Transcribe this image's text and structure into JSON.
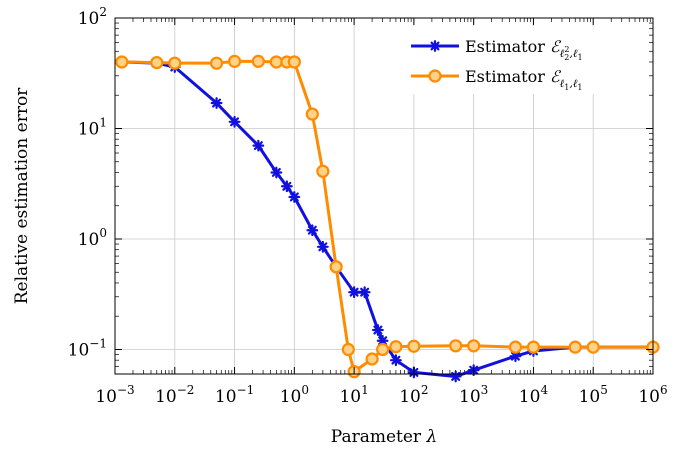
{
  "chart_data": {
    "type": "line",
    "x_scale": "log",
    "y_scale": "log",
    "xlabel_text": "Parameter",
    "xlabel_symbol": "λ",
    "ylabel": "Relative estimation error",
    "xlim": [
      0.001,
      1000000
    ],
    "ylim": [
      0.06,
      100
    ],
    "grid": true,
    "legend_position": "top-right",
    "x_ticks": [
      {
        "base": "10",
        "exp": "−3"
      },
      {
        "base": "10",
        "exp": "−2"
      },
      {
        "base": "10",
        "exp": "−1"
      },
      {
        "base": "10",
        "exp": "0"
      },
      {
        "base": "10",
        "exp": "1"
      },
      {
        "base": "10",
        "exp": "2"
      },
      {
        "base": "10",
        "exp": "3"
      },
      {
        "base": "10",
        "exp": "4"
      },
      {
        "base": "10",
        "exp": "5"
      },
      {
        "base": "10",
        "exp": "6"
      }
    ],
    "y_ticks": [
      {
        "base": "10",
        "exp": "−1"
      },
      {
        "base": "10",
        "exp": "0"
      },
      {
        "base": "10",
        "exp": "1"
      },
      {
        "base": "10",
        "exp": "2"
      }
    ],
    "series": [
      {
        "name": "Estimator ℰℓ₂²,ℓ₁",
        "legend_prefix": "Estimator",
        "legend_math": "ℰ",
        "legend_sub_main": "ℓ",
        "legend_sub_index": "2",
        "legend_sub_power": "2",
        "legend_sub_rest": ",ℓ",
        "legend_sub_tail": "1",
        "color": "#1010e0",
        "marker": "star",
        "x": [
          0.0013,
          0.005,
          0.01,
          0.05,
          0.1,
          0.25,
          0.5,
          0.75,
          1,
          2,
          3,
          5,
          10,
          15,
          25,
          30,
          50,
          100,
          500,
          1000,
          5000,
          10000,
          50000,
          100000,
          1000000
        ],
        "y": [
          40,
          39,
          36,
          17,
          11.5,
          7,
          4,
          3,
          2.4,
          1.2,
          0.85,
          0.56,
          0.33,
          0.33,
          0.15,
          0.12,
          0.08,
          0.062,
          0.057,
          0.065,
          0.087,
          0.097,
          0.105,
          0.105,
          0.105
        ]
      },
      {
        "name": "Estimator ℰℓ₁,ℓ₁",
        "legend_prefix": "Estimator",
        "legend_math": "ℰ",
        "legend_sub_main": "ℓ",
        "legend_sub_index": "1",
        "legend_sub_power": "",
        "legend_sub_rest": ",ℓ",
        "legend_sub_tail": "1",
        "color": "#ff8c00",
        "marker": "circle",
        "x": [
          0.0013,
          0.005,
          0.01,
          0.05,
          0.1,
          0.25,
          0.5,
          0.75,
          1,
          2,
          3,
          5,
          8,
          10,
          20,
          30,
          50,
          100,
          500,
          1000,
          5000,
          10000,
          50000,
          100000,
          1000000
        ],
        "y": [
          40,
          39.5,
          39,
          39,
          40.5,
          40.5,
          40,
          40,
          40,
          13.5,
          4.1,
          0.56,
          0.1,
          0.063,
          0.082,
          0.1,
          0.106,
          0.107,
          0.108,
          0.108,
          0.105,
          0.105,
          0.105,
          0.105,
          0.105
        ]
      }
    ]
  }
}
